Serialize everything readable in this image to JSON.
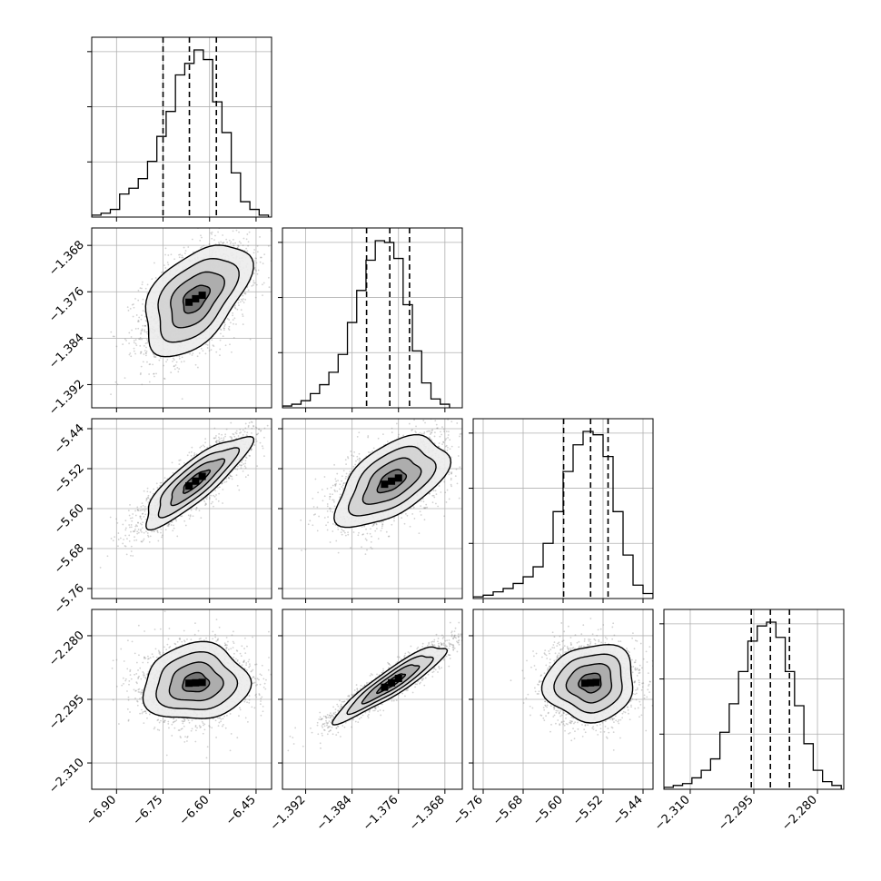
{
  "chart_data": {
    "type": "corner",
    "title": "",
    "n_params": 4,
    "params": [
      {
        "label": "",
        "range": [
          -6.98,
          -6.4
        ],
        "ticks": [
          -6.9,
          -6.75,
          -6.6,
          -6.45
        ],
        "tick_labels": [
          "−6.90",
          "−6.75",
          "−6.60",
          "−6.45"
        ],
        "quantiles": [
          -6.75,
          -6.665,
          -6.578
        ],
        "hist_bin_edges": [
          -6.98,
          -6.95,
          -6.92,
          -6.89,
          -6.86,
          -6.83,
          -6.8,
          -6.77,
          -6.74,
          -6.71,
          -6.68,
          -6.65,
          -6.62,
          -6.59,
          -6.56,
          -6.53,
          -6.5,
          -6.47,
          -6.44,
          -6.41
        ],
        "hist_counts": [
          1,
          2,
          4,
          12,
          15,
          20,
          29,
          42,
          55,
          74,
          80,
          87,
          82,
          60,
          44,
          23,
          8,
          4,
          1
        ]
      },
      {
        "label": "",
        "range": [
          -1.396,
          -1.365
        ],
        "ticks": [
          -1.368,
          -1.376,
          -1.384,
          -1.392
        ],
        "tick_labels": [
          "−1.368",
          "−1.376",
          "−1.384",
          "−1.392"
        ],
        "quantiles": [
          -1.3815,
          -1.3775,
          -1.3741
        ],
        "hist_bin_edges": [
          -1.396,
          -1.3944,
          -1.3928,
          -1.3912,
          -1.3896,
          -1.388,
          -1.3864,
          -1.3848,
          -1.3832,
          -1.3816,
          -1.38,
          -1.3784,
          -1.3768,
          -1.3752,
          -1.3736,
          -1.372,
          -1.3704,
          -1.3688,
          -1.3672
        ],
        "hist_counts": [
          1,
          2,
          4,
          8,
          13,
          20,
          30,
          48,
          66,
          83,
          94,
          93,
          84,
          58,
          32,
          14,
          5,
          2
        ]
      },
      {
        "label": "",
        "range": [
          -5.78,
          -5.42
        ],
        "ticks": [
          -5.44,
          -5.52,
          -5.6,
          -5.68,
          -5.76
        ],
        "tick_labels": [
          "−5.44",
          "−5.52",
          "−5.60",
          "−5.68",
          "−5.76"
        ],
        "quantiles": [
          -5.599,
          -5.545,
          -5.51
        ],
        "hist_bin_edges": [
          -5.78,
          -5.76,
          -5.74,
          -5.72,
          -5.7,
          -5.68,
          -5.66,
          -5.64,
          -5.62,
          -5.6,
          -5.58,
          -5.56,
          -5.54,
          -5.52,
          -5.5,
          -5.48,
          -5.46,
          -5.44,
          -5.42
        ],
        "hist_counts": [
          1,
          2,
          4,
          6,
          9,
          13,
          19,
          33,
          52,
          76,
          92,
          100,
          98,
          85,
          52,
          26,
          8,
          3
        ]
      },
      {
        "label": "",
        "range": [
          -2.3162,
          -2.2738
        ],
        "ticks": [
          -2.28,
          -2.295,
          -2.31
        ],
        "tick_labels": [
          "−2.280",
          "−2.295",
          "−2.310"
        ],
        "quantiles": [
          -2.2956,
          -2.2911,
          -2.2866
        ],
        "hist_bin_edges": [
          -2.3162,
          -2.314,
          -2.3118,
          -2.3096,
          -2.3074,
          -2.3052,
          -2.303,
          -2.3008,
          -2.2986,
          -2.2964,
          -2.2942,
          -2.292,
          -2.2898,
          -2.2876,
          -2.2854,
          -2.2832,
          -2.281,
          -2.2788,
          -2.2766,
          -2.2744
        ],
        "hist_counts": [
          1,
          2,
          3,
          6,
          10,
          16,
          30,
          45,
          62,
          78,
          86,
          88,
          80,
          62,
          44,
          24,
          10,
          4,
          2
        ]
      }
    ],
    "correlations": [
      {
        "row": 1,
        "col": 0,
        "mean": [
          -6.645,
          -1.3772
        ],
        "std": [
          0.085,
          0.0048
        ],
        "corr": 0.5
      },
      {
        "row": 2,
        "col": 0,
        "mean": [
          -6.645,
          -5.545
        ],
        "std": [
          0.085,
          0.045
        ],
        "corr": 0.85
      },
      {
        "row": 2,
        "col": 1,
        "mean": [
          -1.3772,
          -5.545
        ],
        "std": [
          0.0048,
          0.045
        ],
        "corr": 0.55
      },
      {
        "row": 3,
        "col": 0,
        "mean": [
          -6.645,
          -2.2911
        ],
        "std": [
          0.085,
          0.0045
        ],
        "corr": 0.08
      },
      {
        "row": 3,
        "col": 1,
        "mean": [
          -1.3772,
          -2.2911
        ],
        "std": [
          0.0048,
          0.0045
        ],
        "corr": 0.92
      },
      {
        "row": 3,
        "col": 2,
        "mean": [
          -5.545,
          -2.2911
        ],
        "std": [
          0.045,
          0.0045
        ],
        "corr": 0.08
      }
    ],
    "contour_levels": [
      0.5,
      1.0,
      1.5,
      2.0
    ],
    "colors": {
      "line": "#000000",
      "grid": "#b0b0b0",
      "points": "#7f7f7f"
    },
    "grid": true,
    "quantile_line_style": "dashed"
  }
}
